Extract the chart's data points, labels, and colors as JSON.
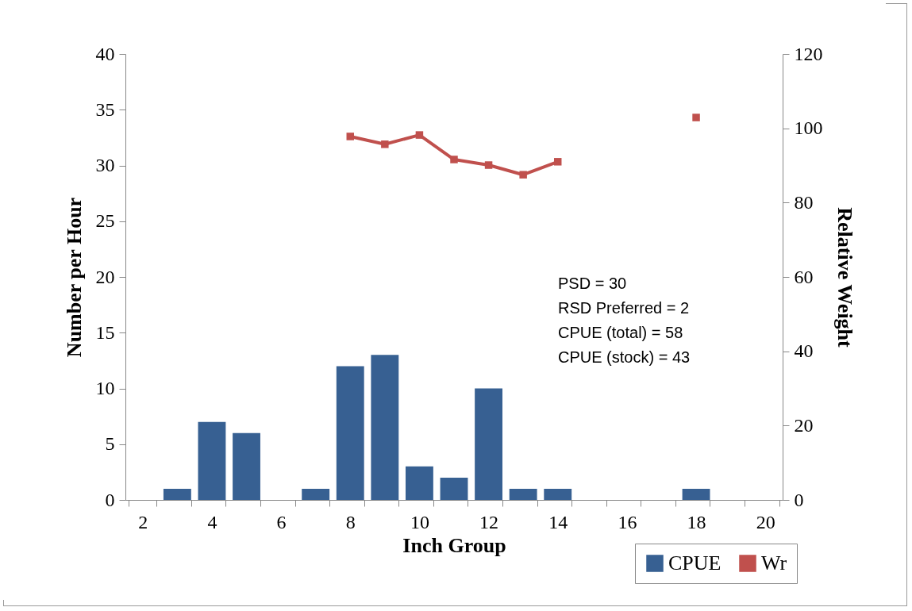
{
  "chart_data": {
    "type": "bar",
    "xlabel": "Inch Group",
    "ylabel": "Number per Hour",
    "y2label": "Relative Weight",
    "categories": [
      "2",
      null,
      "4",
      null,
      "6",
      null,
      "8",
      null,
      "10",
      null,
      "12",
      null,
      "14",
      null,
      "16",
      null,
      "18",
      null,
      "20"
    ],
    "series": [
      {
        "name": "CPUE",
        "color": "#376092",
        "values": [
          null,
          1,
          7,
          6,
          null,
          1,
          12,
          13,
          3,
          2,
          10,
          1,
          1,
          null,
          null,
          null,
          1,
          null,
          null
        ]
      },
      {
        "name": "Wr",
        "type": "line",
        "axis": "y2",
        "color": "#c0504d",
        "marker": "square",
        "values": [
          null,
          null,
          null,
          null,
          null,
          null,
          97.8,
          95.7,
          98.2,
          91.6,
          90.1,
          87.5,
          91.0,
          null,
          null,
          null,
          102.9,
          null,
          null
        ]
      }
    ],
    "ylim": [
      0,
      40
    ],
    "yticks": [
      0,
      5,
      10,
      15,
      20,
      25,
      30,
      35,
      40
    ],
    "y2lim": [
      0,
      120
    ],
    "y2ticks": [
      0,
      20,
      40,
      60,
      80,
      100,
      120
    ],
    "annotations": [
      "PSD = 30",
      "RSD Preferred = 2",
      "CPUE (total) = 58",
      "CPUE (stock) = 43"
    ],
    "grid": false,
    "legend": "bottom right"
  }
}
